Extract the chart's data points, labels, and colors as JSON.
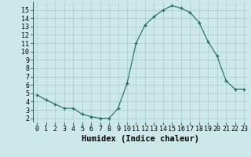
{
  "x": [
    0,
    1,
    2,
    3,
    4,
    5,
    6,
    7,
    8,
    9,
    10,
    11,
    12,
    13,
    14,
    15,
    16,
    17,
    18,
    19,
    20,
    21,
    22,
    23
  ],
  "y": [
    4.8,
    4.2,
    3.7,
    3.2,
    3.2,
    2.5,
    2.2,
    2.0,
    2.0,
    3.2,
    6.2,
    11.0,
    13.2,
    14.2,
    15.0,
    15.5,
    15.2,
    14.7,
    13.5,
    11.2,
    9.5,
    6.5,
    5.5,
    5.5
  ],
  "xlabel": "Humidex (Indice chaleur)",
  "xlim": [
    -0.5,
    23.5
  ],
  "ylim": [
    1.5,
    16.0
  ],
  "yticks": [
    2,
    3,
    4,
    5,
    6,
    7,
    8,
    9,
    10,
    11,
    12,
    13,
    14,
    15
  ],
  "xticks": [
    0,
    1,
    2,
    3,
    4,
    5,
    6,
    7,
    8,
    9,
    10,
    11,
    12,
    13,
    14,
    15,
    16,
    17,
    18,
    19,
    20,
    21,
    22,
    23
  ],
  "line_color": "#1a6b5a",
  "marker": "+",
  "bg_color": "#cce8e8",
  "grid_color": "#aacccc",
  "xlabel_fontsize": 7.5,
  "tick_fontsize": 6.0
}
